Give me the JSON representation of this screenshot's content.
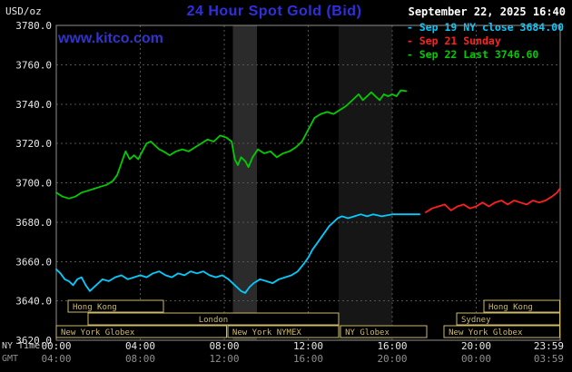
{
  "header": {
    "units_label": "USD/oz",
    "title": "24 Hour Spot Gold (Bid)",
    "title_color": "#2f2fe0",
    "watermark": "www.kitco.com",
    "watermark_color": "#3333cc",
    "datetime": "September 22, 2025 16:40"
  },
  "legend": {
    "items": [
      {
        "label": "- Sep 19 NY close 3684.00",
        "color": "#00ccff"
      },
      {
        "label": "- Sep 21 Sunday",
        "color": "#ff2020"
      },
      {
        "label": "- Sep 22 Last 3746.60",
        "color": "#00cc00"
      }
    ]
  },
  "axis": {
    "ny_time_label": "NY Time",
    "gmt_label": "GMT",
    "ny_ticks": [
      "00:00",
      "04:00",
      "08:00",
      "12:00",
      "16:00",
      "20:00",
      "23:59"
    ],
    "gmt_ticks": [
      "04:00",
      "08:00",
      "12:00",
      "16:00",
      "20:00",
      "00:00",
      "03:59"
    ]
  },
  "chart_data": {
    "type": "line",
    "title": "24 Hour Spot Gold (Bid)",
    "ylabel": "USD/oz",
    "ylim": [
      3620,
      3780
    ],
    "xlim_hours": [
      0,
      24
    ],
    "y_ticks": [
      3780,
      3760,
      3740,
      3720,
      3700,
      3680,
      3660,
      3640,
      3620
    ],
    "x_tick_hours": [
      0,
      4,
      8,
      12,
      16,
      20,
      23.983
    ],
    "grid": true,
    "legend_position": "top-right",
    "series": [
      {
        "name": "Sep 22 (Last 3746.60)",
        "color": "#00cc00",
        "points": [
          [
            0,
            3695
          ],
          [
            0.3,
            3693
          ],
          [
            0.6,
            3692
          ],
          [
            0.9,
            3693
          ],
          [
            1.2,
            3695
          ],
          [
            1.5,
            3696
          ],
          [
            1.8,
            3697
          ],
          [
            2.1,
            3698
          ],
          [
            2.4,
            3699
          ],
          [
            2.7,
            3701
          ],
          [
            2.9,
            3704
          ],
          [
            3.1,
            3710
          ],
          [
            3.3,
            3716
          ],
          [
            3.5,
            3712
          ],
          [
            3.7,
            3714
          ],
          [
            3.9,
            3712
          ],
          [
            4.1,
            3716
          ],
          [
            4.3,
            3720
          ],
          [
            4.5,
            3721
          ],
          [
            4.7,
            3719
          ],
          [
            4.9,
            3717
          ],
          [
            5.1,
            3716
          ],
          [
            5.4,
            3714
          ],
          [
            5.7,
            3716
          ],
          [
            6,
            3717
          ],
          [
            6.3,
            3716
          ],
          [
            6.6,
            3718
          ],
          [
            6.9,
            3720
          ],
          [
            7.2,
            3722
          ],
          [
            7.5,
            3721
          ],
          [
            7.8,
            3724
          ],
          [
            8.1,
            3723
          ],
          [
            8.35,
            3721
          ],
          [
            8.5,
            3712
          ],
          [
            8.65,
            3709
          ],
          [
            8.8,
            3713
          ],
          [
            9,
            3711
          ],
          [
            9.15,
            3708
          ],
          [
            9.35,
            3713
          ],
          [
            9.6,
            3717
          ],
          [
            9.9,
            3715
          ],
          [
            10.2,
            3716
          ],
          [
            10.5,
            3713
          ],
          [
            10.8,
            3715
          ],
          [
            11.1,
            3716
          ],
          [
            11.4,
            3718
          ],
          [
            11.7,
            3721
          ],
          [
            11.9,
            3725
          ],
          [
            12.1,
            3729
          ],
          [
            12.3,
            3733
          ],
          [
            12.6,
            3735
          ],
          [
            12.9,
            3736
          ],
          [
            13.2,
            3735
          ],
          [
            13.5,
            3737
          ],
          [
            13.8,
            3739
          ],
          [
            14.1,
            3742
          ],
          [
            14.4,
            3745
          ],
          [
            14.6,
            3742
          ],
          [
            14.8,
            3744
          ],
          [
            15,
            3746
          ],
          [
            15.2,
            3744
          ],
          [
            15.4,
            3742
          ],
          [
            15.6,
            3745
          ],
          [
            15.8,
            3744
          ],
          [
            16,
            3745
          ],
          [
            16.2,
            3744
          ],
          [
            16.4,
            3747
          ],
          [
            16.67,
            3746.6
          ]
        ]
      },
      {
        "name": "Sep 19 (NY close 3684.00)",
        "color": "#00ccff",
        "points": [
          [
            0,
            3656
          ],
          [
            0.2,
            3654
          ],
          [
            0.4,
            3651
          ],
          [
            0.6,
            3650
          ],
          [
            0.8,
            3648
          ],
          [
            1,
            3651
          ],
          [
            1.2,
            3652
          ],
          [
            1.4,
            3648
          ],
          [
            1.6,
            3645
          ],
          [
            1.8,
            3647
          ],
          [
            2,
            3649
          ],
          [
            2.2,
            3651
          ],
          [
            2.5,
            3650
          ],
          [
            2.8,
            3652
          ],
          [
            3.1,
            3653
          ],
          [
            3.4,
            3651
          ],
          [
            3.7,
            3652
          ],
          [
            4,
            3653
          ],
          [
            4.3,
            3652
          ],
          [
            4.6,
            3654
          ],
          [
            4.9,
            3655
          ],
          [
            5.2,
            3653
          ],
          [
            5.5,
            3652
          ],
          [
            5.8,
            3654
          ],
          [
            6.1,
            3653
          ],
          [
            6.4,
            3655
          ],
          [
            6.7,
            3654
          ],
          [
            7,
            3655
          ],
          [
            7.3,
            3653
          ],
          [
            7.6,
            3652
          ],
          [
            7.9,
            3653
          ],
          [
            8.2,
            3651
          ],
          [
            8.5,
            3648
          ],
          [
            8.8,
            3645
          ],
          [
            9,
            3644
          ],
          [
            9.2,
            3647
          ],
          [
            9.4,
            3649
          ],
          [
            9.7,
            3651
          ],
          [
            10,
            3650
          ],
          [
            10.3,
            3649
          ],
          [
            10.6,
            3651
          ],
          [
            10.9,
            3652
          ],
          [
            11.2,
            3653
          ],
          [
            11.5,
            3655
          ],
          [
            11.8,
            3659
          ],
          [
            12,
            3662
          ],
          [
            12.2,
            3666
          ],
          [
            12.4,
            3669
          ],
          [
            12.6,
            3672
          ],
          [
            12.8,
            3675
          ],
          [
            13,
            3678
          ],
          [
            13.2,
            3680
          ],
          [
            13.4,
            3682
          ],
          [
            13.6,
            3683
          ],
          [
            13.9,
            3682
          ],
          [
            14.2,
            3683
          ],
          [
            14.5,
            3684
          ],
          [
            14.8,
            3683
          ],
          [
            15.1,
            3684
          ],
          [
            15.5,
            3683
          ],
          [
            16,
            3684
          ],
          [
            16.5,
            3684
          ],
          [
            17,
            3684
          ],
          [
            17.3,
            3684
          ]
        ]
      },
      {
        "name": "Sep 21 Sunday",
        "color": "#ff2020",
        "points": [
          [
            17.6,
            3685
          ],
          [
            17.9,
            3687
          ],
          [
            18.2,
            3688
          ],
          [
            18.5,
            3689
          ],
          [
            18.8,
            3686
          ],
          [
            19.1,
            3688
          ],
          [
            19.4,
            3689
          ],
          [
            19.7,
            3687
          ],
          [
            20,
            3688
          ],
          [
            20.3,
            3690
          ],
          [
            20.6,
            3688
          ],
          [
            20.9,
            3690
          ],
          [
            21.2,
            3691
          ],
          [
            21.5,
            3689
          ],
          [
            21.8,
            3691
          ],
          [
            22.1,
            3690
          ],
          [
            22.4,
            3689
          ],
          [
            22.7,
            3691
          ],
          [
            23,
            3690
          ],
          [
            23.3,
            3691
          ],
          [
            23.6,
            3693
          ],
          [
            23.85,
            3695
          ],
          [
            23.98,
            3697
          ]
        ]
      }
    ],
    "bands": [
      {
        "from": 8.4,
        "to": 9.55,
        "color": "#2b2b2b"
      },
      {
        "from": 13.45,
        "to": 16.0,
        "color": "#161616"
      }
    ],
    "session_color": "#cdba6a",
    "sessions": [
      {
        "row": 0,
        "label": "Hong Kong",
        "from": 0.56,
        "to": 5.1
      },
      {
        "row": 0,
        "label": "Hong Kong",
        "from": 20.37,
        "to": 23.98
      },
      {
        "row": 1,
        "label": "London",
        "from": 1.51,
        "to": 13.45,
        "align": "center"
      },
      {
        "row": 1,
        "label": "Sydney",
        "from": 19.07,
        "to": 23.98
      },
      {
        "row": 2,
        "label": "New York Globex",
        "from": 0,
        "to": 8.1
      },
      {
        "row": 2,
        "label": "New York NYMEX",
        "from": 8.17,
        "to": 13.45
      },
      {
        "row": 2,
        "label": "NY Globex",
        "from": 13.54,
        "to": 17.64
      },
      {
        "row": 2,
        "label": "New York Globex",
        "from": 18.47,
        "to": 23.98
      }
    ]
  }
}
